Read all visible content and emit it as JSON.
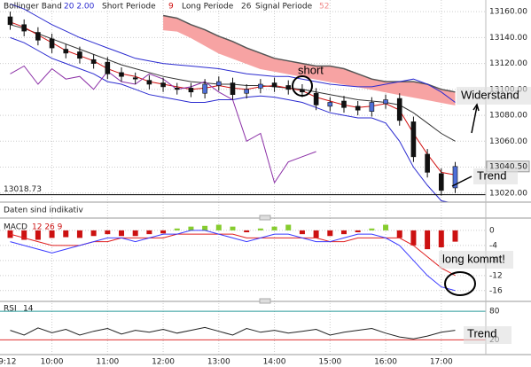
{
  "chart_data": [
    {
      "type": "candlestick",
      "legend": [
        {
          "name": "Bollinger Band",
          "params": "20  2.00",
          "color": "#2b2bd0"
        },
        {
          "name": "Short Periode",
          "params": "9",
          "color": "#d01010"
        },
        {
          "name": "Long Periode",
          "params": "26",
          "color": "#333333"
        },
        {
          "name": "Signal Periode",
          "params": "52",
          "color": "#f08a8a"
        }
      ],
      "x": [
        555,
        570,
        585,
        600,
        615,
        630,
        645,
        660,
        675,
        690,
        705,
        720,
        735,
        750,
        765,
        780,
        795,
        810,
        825,
        840,
        855,
        870,
        885,
        900,
        915,
        930,
        945,
        960,
        975,
        990,
        1005,
        1020,
        1035
      ],
      "open": [
        13156,
        13150,
        13144,
        13139,
        13131,
        13129,
        13123,
        13121,
        13113,
        13109,
        13107,
        13105,
        13101,
        13101,
        13097,
        13103,
        13105,
        13097,
        13101,
        13105,
        13103,
        13100,
        13097,
        13087,
        13091,
        13087,
        13083,
        13089,
        13093,
        13075,
        13050,
        13035,
        13024
      ],
      "high": [
        13160,
        13154,
        13148,
        13143,
        13135,
        13133,
        13127,
        13125,
        13117,
        13113,
        13111,
        13109,
        13105,
        13105,
        13108,
        13110,
        13109,
        13104,
        13108,
        13109,
        13107,
        13104,
        13101,
        13094,
        13095,
        13091,
        13094,
        13096,
        13097,
        13079,
        13054,
        13039,
        13044
      ],
      "low": [
        13146,
        13141,
        13134,
        13128,
        13124,
        13120,
        13116,
        13108,
        13106,
        13104,
        13100,
        13098,
        13096,
        13094,
        13093,
        13099,
        13092,
        13093,
        13097,
        13098,
        13096,
        13094,
        13084,
        13083,
        13082,
        13080,
        13079,
        13085,
        13072,
        13044,
        13032,
        13018,
        13020
      ],
      "close": [
        13150,
        13145,
        13138,
        13132,
        13128,
        13124,
        13120,
        13112,
        13110,
        13108,
        13104,
        13102,
        13100,
        13098,
        13104,
        13106,
        13096,
        13100,
        13104,
        13102,
        13100,
        13098,
        13088,
        13090,
        13086,
        13084,
        13090,
        13092,
        13076,
        13048,
        13036,
        13022,
        13040.5
      ],
      "up_color": "#4f6fd8",
      "down_color": "#111111",
      "bollinger_upper": [
        13166,
        13162,
        13156,
        13150,
        13145,
        13140,
        13136,
        13132,
        13128,
        13124,
        13122,
        13120,
        13119,
        13118,
        13117,
        13116,
        13114,
        13112,
        13111,
        13110,
        13110,
        13108,
        13106,
        13104,
        13103,
        13102,
        13102,
        13104,
        13106,
        13108,
        13104,
        13098,
        13090
      ],
      "bollinger_lower": [
        13140,
        13136,
        13130,
        13124,
        13120,
        13116,
        13112,
        13106,
        13104,
        13100,
        13096,
        13094,
        13092,
        13090,
        13090,
        13092,
        13092,
        13094,
        13095,
        13094,
        13092,
        13090,
        13086,
        13082,
        13080,
        13078,
        13078,
        13074,
        13060,
        13040,
        13026,
        13014,
        13012
      ],
      "short_values": [
        13152,
        13148,
        13142,
        13136,
        13130,
        13126,
        13122,
        13116,
        13112,
        13110,
        13106,
        13104,
        13102,
        13100,
        13101,
        13103,
        13101,
        13100,
        13102,
        13103,
        13101,
        13099,
        13094,
        13091,
        13088,
        13086,
        13087,
        13089,
        13084,
        13066,
        13050,
        13036,
        13034
      ],
      "long_values": [
        13150,
        13147,
        13143,
        13139,
        13135,
        13131,
        13127,
        13123,
        13119,
        13116,
        13113,
        13110,
        13108,
        13106,
        13105,
        13104,
        13104,
        13103,
        13103,
        13102,
        13101,
        13100,
        13098,
        13096,
        13094,
        13092,
        13091,
        13090,
        13088,
        13082,
        13074,
        13066,
        13060
      ],
      "span_a": [
        null,
        null,
        null,
        null,
        null,
        null,
        null,
        null,
        null,
        null,
        null,
        13157,
        13155,
        13150,
        13146,
        13141,
        13137,
        13132,
        13128,
        13124,
        13122,
        13120,
        13118,
        13118,
        13116,
        13112,
        13108,
        13106,
        13106,
        13106,
        13104,
        13100,
        13098
      ],
      "span_b": [
        null,
        null,
        null,
        null,
        null,
        null,
        null,
        null,
        null,
        null,
        null,
        13146,
        13145,
        13140,
        13134,
        13128,
        13124,
        13120,
        13116,
        13114,
        13112,
        13110,
        13108,
        13106,
        13104,
        13102,
        13100,
        13098,
        13096,
        13094,
        13092,
        13090,
        13088
      ],
      "cloud_color": "#f7a3a3",
      "lagging_color": "#8b2fa6",
      "lagging": [
        13112,
        13118,
        13104,
        13116,
        13108,
        13110,
        13100,
        13114,
        13106,
        13104,
        13112,
        13108,
        13100,
        13102,
        13106,
        13098,
        13092,
        13060,
        13066,
        13028,
        13044,
        13048,
        13052,
        null,
        null,
        null,
        null,
        null,
        null,
        null,
        null,
        null,
        null
      ],
      "level": 13018.73,
      "last_price": {
        "value": 13040.5,
        "label": "13040.50"
      },
      "footnote": "Daten sind indikativ",
      "annotations": [
        "short",
        "Widerstand",
        "Trend"
      ],
      "xlim": [
        544,
        1068
      ],
      "xticks": [
        {
          "value": 552,
          "label": "9:12"
        },
        {
          "value": 600,
          "label": "10:00"
        },
        {
          "value": 660,
          "label": "11:00"
        },
        {
          "value": 720,
          "label": "12:00"
        },
        {
          "value": 780,
          "label": "13:00"
        },
        {
          "value": 840,
          "label": "14:00"
        },
        {
          "value": 900,
          "label": "15:00"
        },
        {
          "value": 960,
          "label": "16:00"
        },
        {
          "value": 1020,
          "label": "17:00"
        }
      ],
      "ylim": [
        13013,
        13169
      ],
      "yticks": [
        {
          "value": 13020,
          "label": "13020.00"
        },
        {
          "value": 13040,
          "label": "13040.00"
        },
        {
          "value": 13060,
          "label": "13060.00"
        },
        {
          "value": 13080,
          "label": "13080.00"
        },
        {
          "value": 13100,
          "label": "13100.00"
        },
        {
          "value": 13120,
          "label": "13120.00"
        },
        {
          "value": 13140,
          "label": "13140.00"
        },
        {
          "value": 13160,
          "label": "13160.00"
        }
      ],
      "grid": true
    },
    {
      "type": "macd",
      "title": "MACD",
      "params": "12  26  9",
      "histogram": [
        -2,
        -2.5,
        -2.5,
        -2,
        -1.8,
        -2,
        -1.5,
        -1,
        -1.5,
        -1.5,
        -1,
        -0.8,
        0.5,
        1,
        1.2,
        1.5,
        1,
        -0.5,
        0.5,
        1,
        1.5,
        -1,
        -2,
        -1.5,
        -1,
        -0.5,
        0.5,
        1.5,
        -2,
        -4,
        -5,
        -4.5,
        -3
      ],
      "pos_color": "#86cc2e",
      "neg_color": "#cc1111",
      "macd": {
        "color": "#3a3aff",
        "values": [
          -3,
          -4,
          -5,
          -6,
          -5,
          -4,
          -3,
          -2,
          -2,
          -3,
          -2,
          -1,
          -1,
          0,
          0,
          -1,
          -2,
          -3,
          -2,
          -1,
          -1,
          -2,
          -3,
          -3,
          -2,
          -1,
          -1,
          -2,
          -4,
          -8,
          -12,
          -15,
          -16
        ]
      },
      "signal": {
        "color": "#e02020",
        "values": [
          -1,
          -2,
          -3,
          -4,
          -4,
          -4,
          -3,
          -3,
          -2,
          -2,
          -2,
          -2,
          -1,
          -1,
          -1,
          -1,
          -1,
          -2,
          -2,
          -2,
          -2,
          -2,
          -2,
          -3,
          -3,
          -2,
          -2,
          -2,
          -2,
          -4,
          -7,
          -10,
          -12
        ]
      },
      "annotations": [
        "long kommt!"
      ],
      "ylim": [
        -18.4,
        2.8
      ],
      "yticks": [
        0,
        -4,
        -8,
        -12,
        -16
      ],
      "grid": true
    },
    {
      "type": "rsi",
      "title": "RSI",
      "params": "14",
      "color": "#222222",
      "values": [
        40,
        30,
        45,
        35,
        42,
        30,
        38,
        44,
        32,
        40,
        36,
        42,
        34,
        40,
        46,
        38,
        30,
        44,
        36,
        40,
        34,
        38,
        42,
        30,
        36,
        40,
        44,
        34,
        26,
        22,
        28,
        36,
        40
      ],
      "annotations": [
        "Trend"
      ],
      "ylim": [
        -11,
        97
      ],
      "yticks": [
        20,
        80
      ],
      "line_colors": [
        "#e03030",
        "#2a9a9a"
      ]
    }
  ]
}
